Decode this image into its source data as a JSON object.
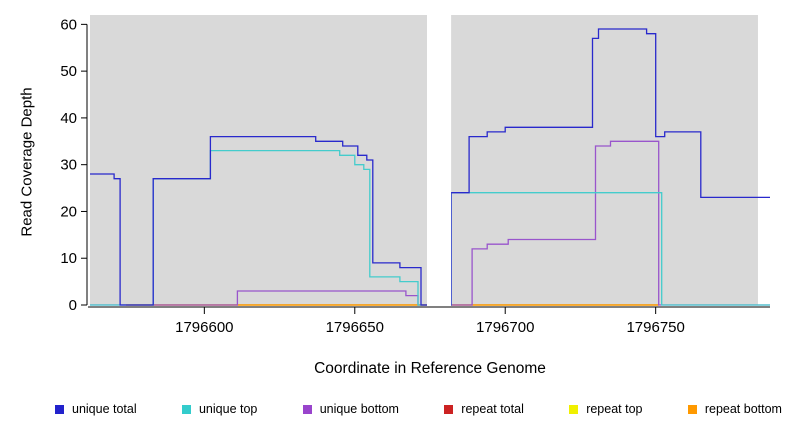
{
  "figure": {
    "panel_background": "#d9d9d9",
    "gap_color": "#ffffff"
  },
  "chart_data": {
    "type": "line",
    "step": "after",
    "title": "",
    "xlabel": "Coordinate in Reference Genome",
    "ylabel": "Read Coverage Depth",
    "xlim": [
      1796562,
      1796788
    ],
    "ylim": [
      0,
      62
    ],
    "x_ticks": [
      1796600,
      1796650,
      1796700,
      1796750
    ],
    "y_ticks": [
      0,
      10,
      20,
      30,
      40,
      50,
      60
    ],
    "grid": false,
    "legend_position": "bottom",
    "shaded_regions": [
      {
        "from": 1796562,
        "to": 1796674,
        "color": "#d9d9d9"
      },
      {
        "from": 1796682,
        "to": 1796784,
        "color": "#d9d9d9"
      }
    ],
    "gap_region": {
      "from": 1796674,
      "to": 1796682,
      "color": "#ffffff"
    },
    "series": [
      {
        "name": "repeat total",
        "color": "#cc2222",
        "points": [
          [
            1796574,
            0
          ],
          [
            1796751,
            0
          ]
        ]
      },
      {
        "name": "repeat top",
        "color": "#f0f000",
        "points": [
          [
            1796574,
            0
          ],
          [
            1796751,
            0
          ]
        ]
      },
      {
        "name": "repeat bottom",
        "color": "#ff9900",
        "points": [
          [
            1796574,
            0
          ],
          [
            1796751,
            0
          ]
        ]
      },
      {
        "name": "unique bottom",
        "color": "#9955cc",
        "points": [
          [
            1796562,
            0
          ],
          [
            1796611,
            3
          ],
          [
            1796667,
            2
          ],
          [
            1796671,
            0
          ],
          [
            1796689,
            12
          ],
          [
            1796694,
            13
          ],
          [
            1796701,
            14
          ],
          [
            1796730,
            34
          ],
          [
            1796735,
            35
          ],
          [
            1796751,
            0
          ],
          [
            1796788,
            0
          ]
        ]
      },
      {
        "name": "unique top",
        "color": "#44cccc",
        "points": [
          [
            1796562,
            0
          ],
          [
            1796583,
            27
          ],
          [
            1796602,
            33
          ],
          [
            1796645,
            32
          ],
          [
            1796650,
            30
          ],
          [
            1796653,
            29
          ],
          [
            1796655,
            6
          ],
          [
            1796665,
            5
          ],
          [
            1796671,
            0
          ],
          [
            1796682,
            24
          ],
          [
            1796752,
            0
          ],
          [
            1796788,
            0
          ]
        ]
      },
      {
        "name": "unique total",
        "color": "#2929cc",
        "points": [
          [
            1796562,
            28
          ],
          [
            1796570,
            27
          ],
          [
            1796572,
            0
          ],
          [
            1796583,
            27
          ],
          [
            1796602,
            36
          ],
          [
            1796637,
            35
          ],
          [
            1796646,
            34
          ],
          [
            1796651,
            32
          ],
          [
            1796654,
            31
          ],
          [
            1796656,
            9
          ],
          [
            1796665,
            8
          ],
          [
            1796672,
            0
          ],
          [
            1796682,
            24
          ],
          [
            1796688,
            36
          ],
          [
            1796694,
            37
          ],
          [
            1796700,
            38
          ],
          [
            1796729,
            57
          ],
          [
            1796731,
            59
          ],
          [
            1796747,
            58
          ],
          [
            1796750,
            36
          ],
          [
            1796753,
            37
          ],
          [
            1796765,
            23
          ],
          [
            1796788,
            23
          ]
        ]
      }
    ]
  },
  "legend": {
    "items": [
      {
        "label": "unique total",
        "color": "#2222cc"
      },
      {
        "label": "unique top",
        "color": "#33cccc"
      },
      {
        "label": "unique bottom",
        "color": "#9944cc"
      },
      {
        "label": "repeat total",
        "color": "#cc2222"
      },
      {
        "label": "repeat top",
        "color": "#f0f000"
      },
      {
        "label": "repeat bottom",
        "color": "#ff9900"
      }
    ]
  }
}
